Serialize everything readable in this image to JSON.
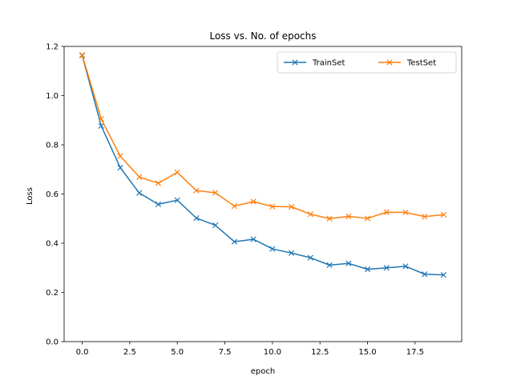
{
  "chart_data": {
    "type": "line",
    "title": "Loss vs. No. of epochs",
    "xlabel": "epoch",
    "ylabel": "Loss",
    "xlim": [
      -0.95,
      19.95
    ],
    "ylim": [
      0.0,
      1.2
    ],
    "xticks": [
      0.0,
      2.5,
      5.0,
      7.5,
      10.0,
      12.5,
      15.0,
      17.5
    ],
    "xtick_labels": [
      "0.0",
      "2.5",
      "5.0",
      "7.5",
      "10.0",
      "12.5",
      "15.0",
      "17.5"
    ],
    "yticks": [
      0.0,
      0.2,
      0.4,
      0.6,
      0.8,
      1.0,
      1.2
    ],
    "ytick_labels": [
      "0.0",
      "0.2",
      "0.4",
      "0.6",
      "0.8",
      "1.0",
      "1.2"
    ],
    "grid": false,
    "legend_position": "top-right",
    "x": [
      0,
      1,
      2,
      3,
      4,
      5,
      6,
      7,
      8,
      9,
      10,
      11,
      12,
      13,
      14,
      15,
      16,
      17,
      18,
      19
    ],
    "series": [
      {
        "name": "TrainSet",
        "color": "#1f77b4",
        "marker": "x",
        "values": [
          1.163,
          0.877,
          0.707,
          0.604,
          0.558,
          0.575,
          0.502,
          0.473,
          0.406,
          0.416,
          0.377,
          0.36,
          0.341,
          0.311,
          0.318,
          0.294,
          0.3,
          0.306,
          0.274,
          0.271
        ]
      },
      {
        "name": "TestSet",
        "color": "#ff7f0e",
        "marker": "x",
        "values": [
          1.165,
          0.905,
          0.754,
          0.669,
          0.644,
          0.688,
          0.614,
          0.605,
          0.551,
          0.569,
          0.549,
          0.548,
          0.518,
          0.5,
          0.509,
          0.501,
          0.526,
          0.525,
          0.508,
          0.516
        ]
      }
    ]
  }
}
